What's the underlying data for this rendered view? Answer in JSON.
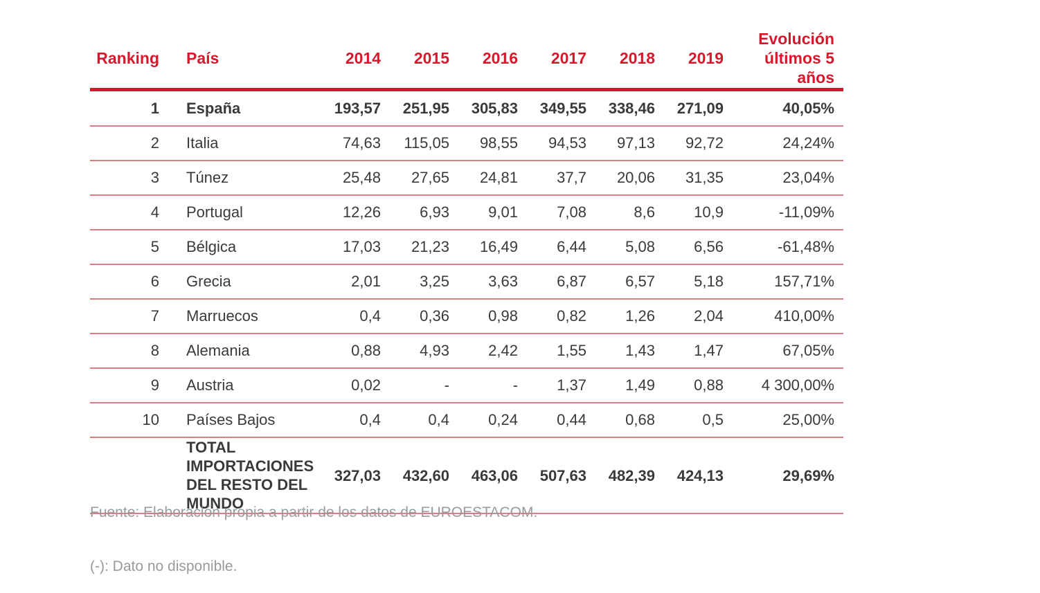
{
  "table": {
    "headers": {
      "ranking": "Ranking",
      "pais": "País",
      "years": [
        "2014",
        "2015",
        "2016",
        "2017",
        "2018",
        "2019"
      ],
      "evolucion": "Evolución últimos 5 años"
    },
    "rows": [
      {
        "rank": "1",
        "pais": "España",
        "values": [
          "193,57",
          "251,95",
          "305,83",
          "349,55",
          "338,46",
          "271,09"
        ],
        "evolucion": "40,05%",
        "bold": true
      },
      {
        "rank": "2",
        "pais": "Italia",
        "values": [
          "74,63",
          "115,05",
          "98,55",
          "94,53",
          "97,13",
          "92,72"
        ],
        "evolucion": "24,24%"
      },
      {
        "rank": "3",
        "pais": "Túnez",
        "values": [
          "25,48",
          "27,65",
          "24,81",
          "37,7",
          "20,06",
          "31,35"
        ],
        "evolucion": "23,04%"
      },
      {
        "rank": "4",
        "pais": "Portugal",
        "values": [
          "12,26",
          "6,93",
          "9,01",
          "7,08",
          "8,6",
          "10,9"
        ],
        "evolucion": "-11,09%"
      },
      {
        "rank": "5",
        "pais": "Bélgica",
        "values": [
          "17,03",
          "21,23",
          "16,49",
          "6,44",
          "5,08",
          "6,56"
        ],
        "evolucion": "-61,48%"
      },
      {
        "rank": "6",
        "pais": "Grecia",
        "values": [
          "2,01",
          "3,25",
          "3,63",
          "6,87",
          "6,57",
          "5,18"
        ],
        "evolucion": "157,71%"
      },
      {
        "rank": "7",
        "pais": "Marruecos",
        "values": [
          "0,4",
          "0,36",
          "0,98",
          "0,82",
          "1,26",
          "2,04"
        ],
        "evolucion": "410,00%"
      },
      {
        "rank": "8",
        "pais": "Alemania",
        "values": [
          "0,88",
          "4,93",
          "2,42",
          "1,55",
          "1,43",
          "1,47"
        ],
        "evolucion": "67,05%"
      },
      {
        "rank": "9",
        "pais": "Austria",
        "values": [
          "0,02",
          "-",
          "-",
          "1,37",
          "1,49",
          "0,88"
        ],
        "evolucion": "4 300,00%"
      },
      {
        "rank": "10",
        "pais": "Países Bajos",
        "values": [
          "0,4",
          "0,4",
          "0,24",
          "0,44",
          "0,68",
          "0,5"
        ],
        "evolucion": "25,00%"
      }
    ],
    "total": {
      "rank": "",
      "pais": "TOTAL IMPORTACIONES DEL RESTO DEL MUNDO",
      "values": [
        "327,03",
        "432,60",
        "463,06",
        "507,63",
        "482,39",
        "424,13"
      ],
      "evolucion": "29,69%"
    }
  },
  "notes": {
    "source": "Fuente: Elaboración propia a partir de los datos de EUROESTACOM.",
    "not_available": "(-): Dato no disponible."
  },
  "colors": {
    "accent": "#d7172c",
    "row_divider": "#e07a80",
    "text": "#3a3a3a",
    "note_text": "#9a9a9a"
  }
}
